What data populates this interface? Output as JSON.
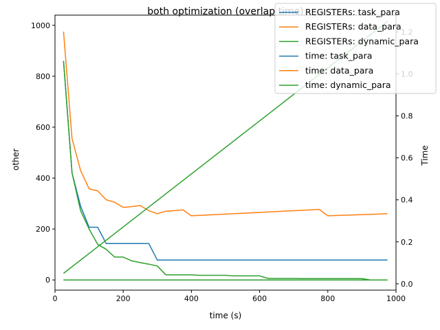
{
  "chart_data": {
    "type": "line",
    "title": "both optimization (overlap time)",
    "xlabel": "time (s)",
    "ylabel_left": "other",
    "ylabel_right": "Time",
    "xlim": [
      0,
      1000
    ],
    "ylim_left": [
      -40,
      1040
    ],
    "ylim_right": [
      -0.03,
      1.28
    ],
    "x_ticks": [
      0,
      200,
      400,
      600,
      800,
      1000
    ],
    "y_ticks_left": [
      0,
      200,
      400,
      600,
      800,
      1000
    ],
    "y_ticks_right": [
      0.0,
      0.2,
      0.4,
      0.6,
      0.8,
      1.0,
      1.2
    ],
    "grid": false,
    "legend_position": "top-right",
    "series": [
      {
        "name": "REGISTERs: task_para",
        "axis": "left",
        "color": "#1f77b4",
        "x": [
          25,
          975
        ],
        "y": [
          0,
          0
        ]
      },
      {
        "name": "REGISTERs: data_para",
        "axis": "left",
        "color": "#ff7f0e",
        "x": [
          25,
          975
        ],
        "y": [
          0,
          0
        ]
      },
      {
        "name": "REGISTERs: dynamic_para",
        "axis": "left",
        "color": "#2ca02c",
        "x": [
          25,
          975
        ],
        "y": [
          0,
          0
        ]
      },
      {
        "name": "time: task_para",
        "axis": "left",
        "color": "#1f77b4",
        "x": [
          25,
          50,
          75,
          100,
          125,
          150,
          175,
          200,
          225,
          250,
          275,
          300,
          325,
          350,
          375,
          400,
          975
        ],
        "y": [
          860,
          420,
          290,
          207,
          207,
          143,
          143,
          143,
          143,
          143,
          143,
          78,
          78,
          78,
          78,
          78,
          78
        ]
      },
      {
        "name": "time: data_para",
        "axis": "left",
        "color": "#ff7f0e",
        "x": [
          25,
          50,
          75,
          100,
          125,
          150,
          175,
          200,
          225,
          250,
          275,
          300,
          325,
          350,
          375,
          400,
          775,
          800,
          975
        ],
        "y": [
          975,
          555,
          430,
          358,
          350,
          315,
          305,
          285,
          288,
          292,
          272,
          260,
          270,
          272,
          275,
          252,
          277,
          252,
          260
        ]
      },
      {
        "name": "time: dynamic_para",
        "axis": "left",
        "color": "#2ca02c",
        "x": [
          25,
          50,
          75,
          100,
          125,
          150,
          175,
          200,
          225,
          250,
          275,
          300,
          325,
          400,
          425,
          500,
          525,
          600,
          625,
          700,
          725,
          900,
          925,
          975
        ],
        "y": [
          860,
          420,
          272,
          200,
          140,
          120,
          90,
          90,
          75,
          68,
          62,
          55,
          20,
          20,
          18,
          18,
          16,
          16,
          6,
          6,
          5,
          5,
          0,
          0
        ]
      },
      {
        "name": "time: dynamic_para (Time axis)",
        "axis": "right",
        "color": "#2ca02c",
        "x": [
          25,
          975
        ],
        "y": [
          0.05,
          1.25
        ]
      }
    ]
  }
}
